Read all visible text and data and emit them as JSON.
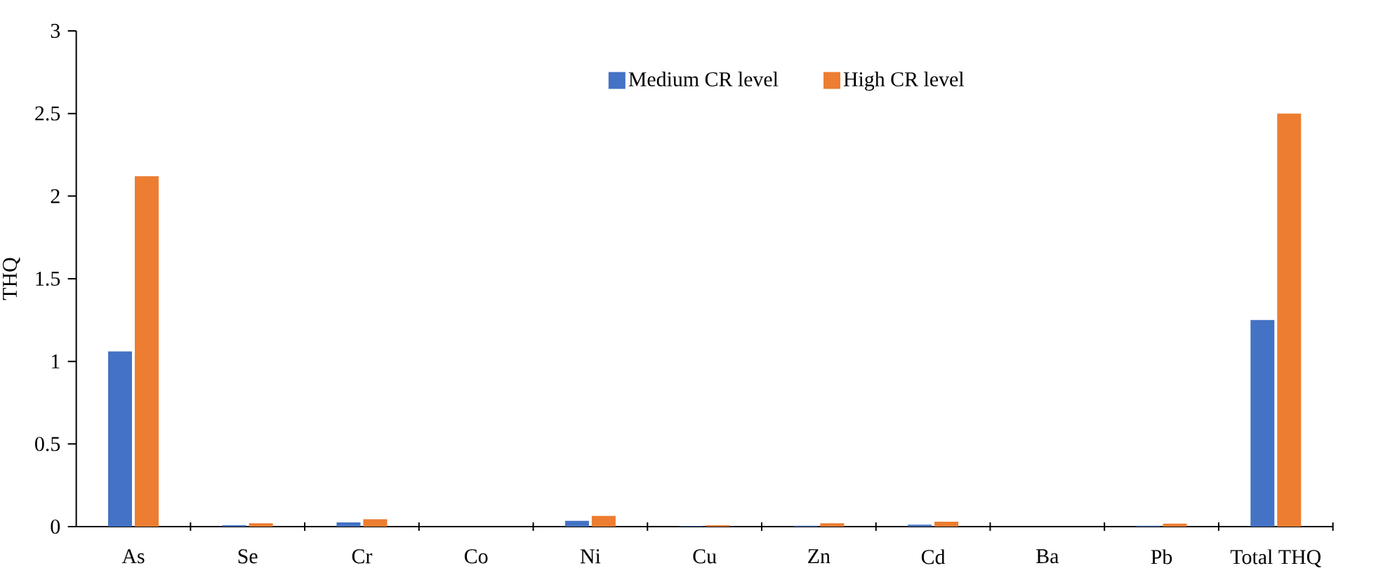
{
  "chart_data": {
    "type": "bar",
    "ylabel": "THQ",
    "categories": [
      "As",
      "Se",
      "Cr",
      "Co",
      "Ni",
      "Cu",
      "Zn",
      "Cd",
      "Ba",
      "Pb",
      "Total THQ"
    ],
    "series": [
      {
        "name": "Medium CR level",
        "color": "#4472c4",
        "values": [
          1.06,
          0.008,
          0.025,
          0,
          0.035,
          0.003,
          0.005,
          0.012,
          0,
          0.005,
          1.25
        ]
      },
      {
        "name": "High CR level",
        "color": "#ed7d31",
        "values": [
          2.12,
          0.02,
          0.045,
          0,
          0.065,
          0.008,
          0.02,
          0.03,
          0,
          0.018,
          2.5
        ]
      }
    ],
    "ylim": [
      0,
      3
    ],
    "yticks": [
      0,
      0.5,
      1,
      1.5,
      2,
      2.5,
      3
    ],
    "legend": "top",
    "grid": false
  }
}
